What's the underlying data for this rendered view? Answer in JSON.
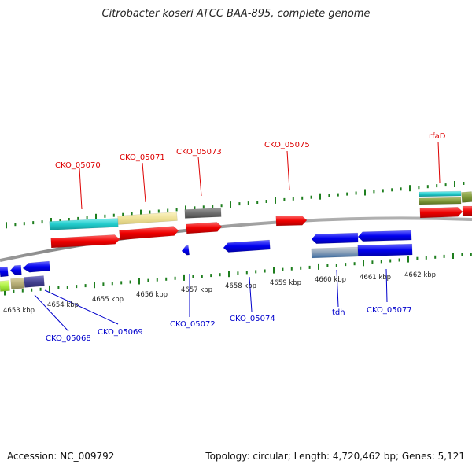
{
  "title": "Citrobacter koseri ATCC BAA-895, complete genome",
  "footer": {
    "accession": "Accession: NC_009792",
    "summary": "Topology: circular; Length: 4,720,462 bp; Genes: 5,121"
  },
  "colors": {
    "backbone": "#8a8a8a",
    "tick": "#1e7e1e",
    "top_label": "#dd0000",
    "bottom_label": "#0000cc",
    "scale_text": "#222222"
  },
  "scale_labels": [
    "4653 kbp",
    "4654 kbp",
    "4655 kbp",
    "4656 kbp",
    "4657 kbp",
    "4658 kbp",
    "4659 kbp",
    "4660 kbp",
    "4661 kbp",
    "4662 kbp"
  ],
  "top_genes": [
    "CKO_05070",
    "CKO_05071",
    "CKO_05073",
    "CKO_05075",
    "rfaD"
  ],
  "bottom_genes": [
    "CKO_05068",
    "CKO_05069",
    "CKO_05072",
    "CKO_05074",
    "tdh",
    "CKO_05077"
  ]
}
